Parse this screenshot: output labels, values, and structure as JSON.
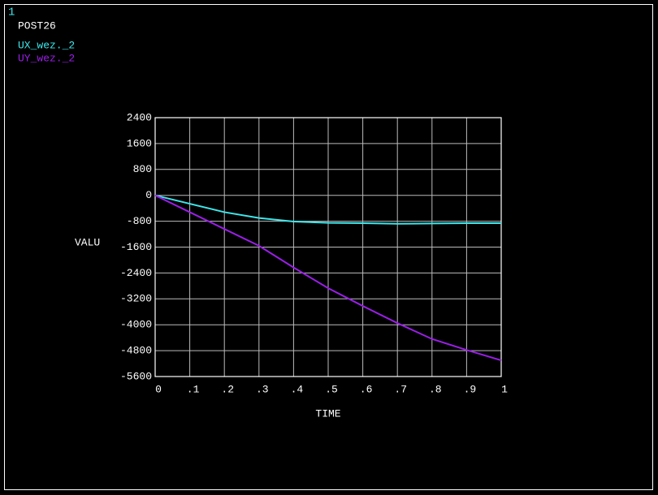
{
  "chart_data": {
    "type": "line",
    "window_number": "1",
    "title": "POST26",
    "xlabel": "TIME",
    "ylabel": "VALU",
    "x": [
      0,
      0.1,
      0.2,
      0.3,
      0.4,
      0.5,
      0.6,
      0.7,
      0.8,
      0.9,
      1
    ],
    "series": [
      {
        "name": "UX_wez._2",
        "color": "#3ee6ea",
        "values": [
          0,
          -260,
          -520,
          -700,
          -810,
          -850,
          -860,
          -880,
          -870,
          -860,
          -860
        ]
      },
      {
        "name": "UY_wez._2",
        "color": "#9b1ee8",
        "values": [
          0,
          -520,
          -1040,
          -1560,
          -2230,
          -2870,
          -3420,
          -3950,
          -4440,
          -4780,
          -5100
        ]
      }
    ],
    "xlim": [
      0,
      1
    ],
    "xticks": [
      0,
      {
        "value": 0.1,
        "label": ".1"
      },
      {
        "value": 0.2,
        "label": ".2"
      },
      {
        "value": 0.3,
        "label": ".3"
      },
      {
        "value": 0.4,
        "label": ".4"
      },
      {
        "value": 0.5,
        "label": ".5"
      },
      {
        "value": 0.6,
        "label": ".6"
      },
      {
        "value": 0.7,
        "label": ".7"
      },
      {
        "value": 0.8,
        "label": ".8"
      },
      {
        "value": 0.9,
        "label": ".9"
      },
      1
    ],
    "ylim": [
      -5600,
      2400
    ],
    "yticks": [
      2400,
      1600,
      800,
      0,
      -800,
      -1600,
      -2400,
      -3200,
      -4000,
      -4800,
      -5600
    ],
    "grid": true
  }
}
